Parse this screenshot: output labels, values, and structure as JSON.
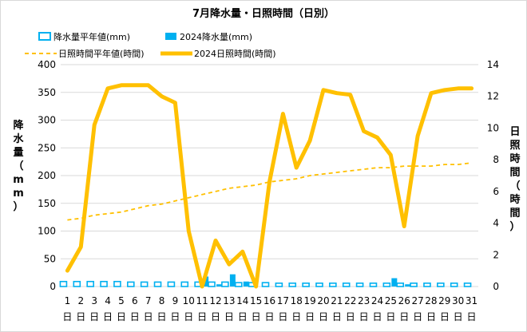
{
  "chart_data": {
    "type": "bar+line",
    "title": "7月降水量・日照時間（日別）",
    "ylabel_left": "降水量（mm）",
    "ylabel_right": "日照時間（時間）",
    "y_left_lim": [
      0,
      400
    ],
    "y_left_ticks": [
      0,
      50,
      100,
      150,
      200,
      250,
      300,
      350,
      400
    ],
    "y_right_lim": [
      0,
      14
    ],
    "y_right_ticks": [
      0,
      2,
      4,
      6,
      8,
      10,
      12,
      14
    ],
    "x": [
      1,
      2,
      3,
      4,
      5,
      6,
      7,
      8,
      9,
      10,
      11,
      12,
      13,
      14,
      15,
      16,
      17,
      18,
      19,
      20,
      21,
      22,
      23,
      24,
      25,
      26,
      27,
      28,
      29,
      30,
      31
    ],
    "x_unit": "日",
    "grid": true,
    "legend_position": "top-left",
    "colors": {
      "precip_normal": "#00b0f0",
      "precip_2024": "#00b0f0",
      "sun_normal": "#ffc000",
      "sun_2024": "#ffc000",
      "grid": "#d9d9d9"
    },
    "series": [
      {
        "name": "降水量平年値(mm)",
        "kind": "bar-outline",
        "axis": "left",
        "values": [
          9,
          9,
          9,
          9,
          9,
          8,
          8,
          8,
          8,
          8,
          8,
          8,
          8,
          7,
          7,
          7,
          6,
          6,
          6,
          6,
          6,
          6,
          6,
          6,
          6,
          6,
          6,
          6,
          6,
          6,
          6
        ]
      },
      {
        "name": "2024降水量(mm)",
        "kind": "bar-filled",
        "axis": "left",
        "values": [
          0,
          0,
          0,
          0,
          0,
          0,
          0,
          0,
          0,
          0,
          18,
          4,
          22,
          9,
          0,
          0,
          0,
          0,
          0,
          0,
          0,
          0,
          0,
          0,
          15,
          4,
          0,
          0,
          0,
          0,
          0
        ]
      },
      {
        "name": "日照時間平年値(時間)",
        "kind": "line-dashed",
        "axis": "right",
        "values": [
          4.2,
          4.3,
          4.5,
          4.6,
          4.7,
          4.9,
          5.1,
          5.2,
          5.4,
          5.6,
          5.8,
          6.0,
          6.2,
          6.3,
          6.4,
          6.6,
          6.7,
          6.8,
          7.0,
          7.1,
          7.2,
          7.3,
          7.4,
          7.5,
          7.5,
          7.6,
          7.6,
          7.6,
          7.7,
          7.7,
          7.8
        ]
      },
      {
        "name": "2024日照時間(時間)",
        "kind": "line-solid",
        "axis": "right",
        "values": [
          1.0,
          2.5,
          10.2,
          12.5,
          12.7,
          12.7,
          12.7,
          12.0,
          11.6,
          3.5,
          0.0,
          2.9,
          1.4,
          2.2,
          0.0,
          6.6,
          10.9,
          7.5,
          9.2,
          12.4,
          12.2,
          12.1,
          9.8,
          9.4,
          8.3,
          3.8,
          9.5,
          12.2,
          12.4,
          12.5,
          12.5
        ]
      }
    ]
  }
}
